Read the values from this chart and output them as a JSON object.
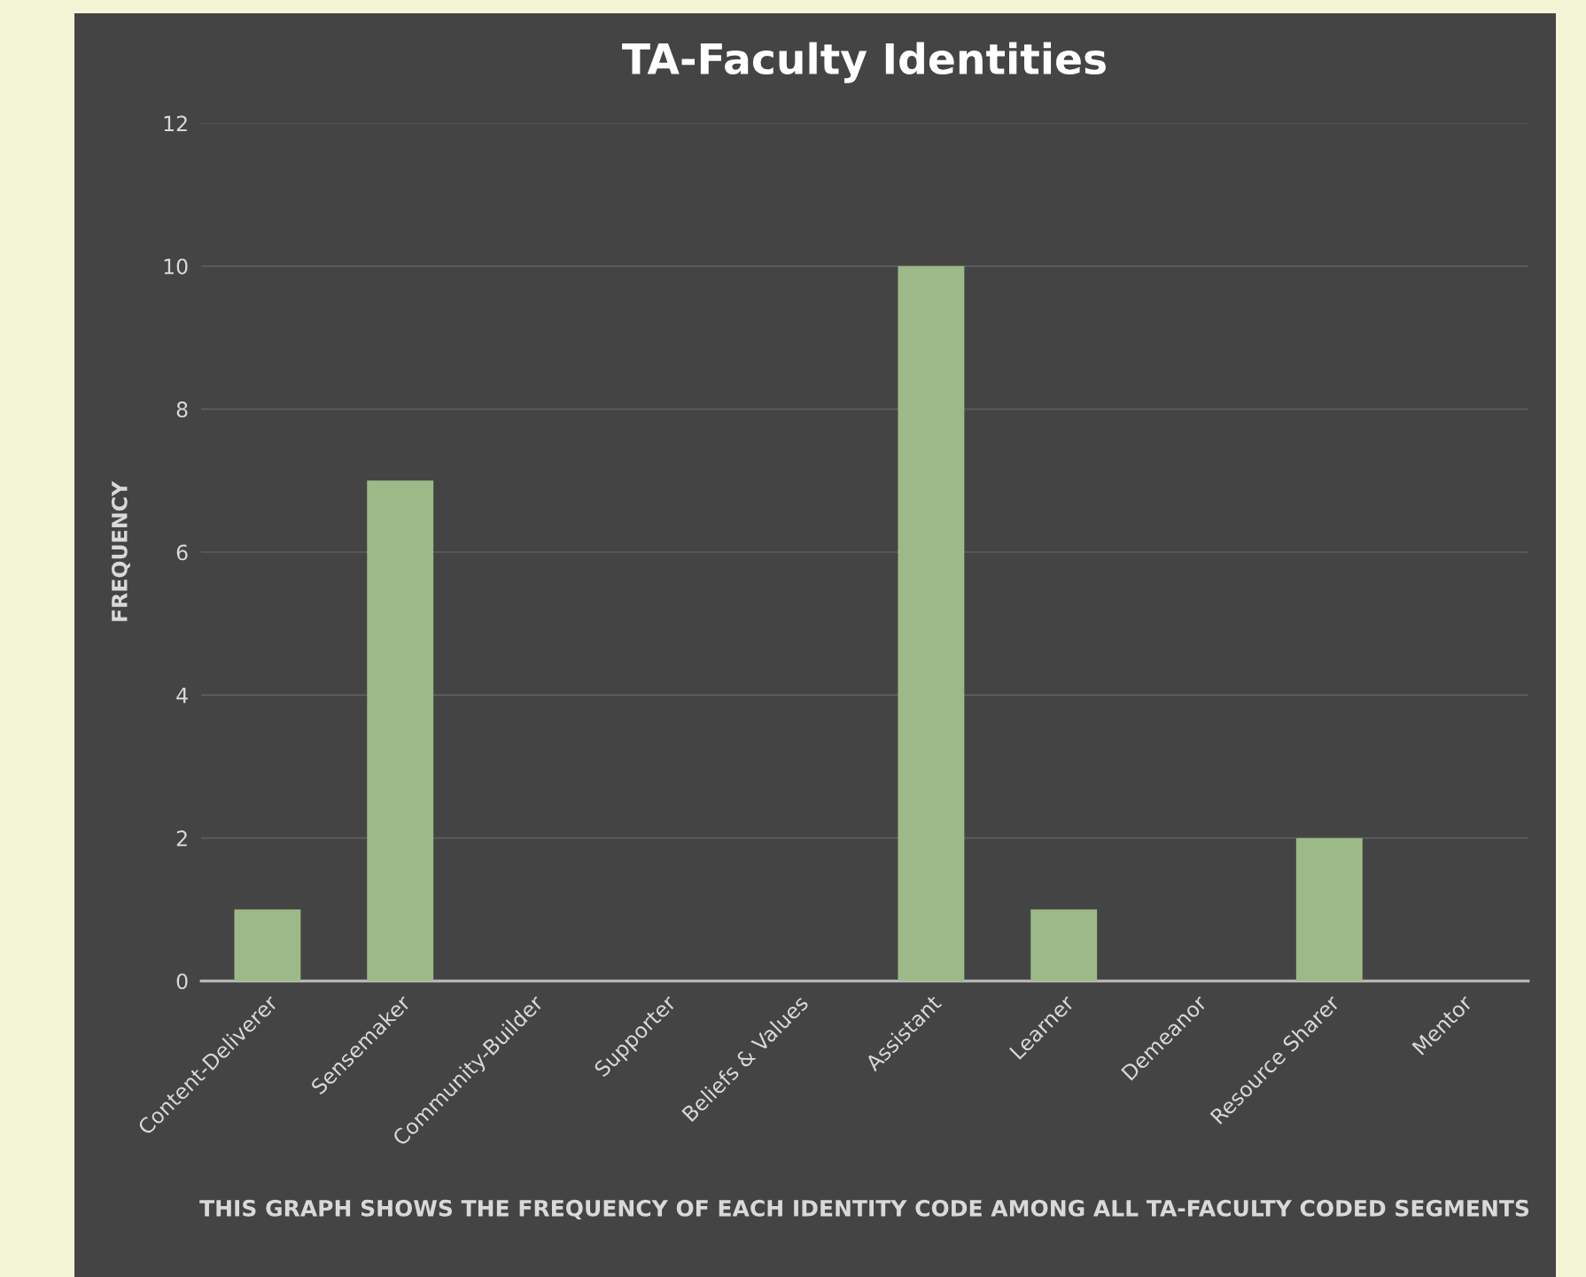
{
  "chart_data": {
    "type": "bar",
    "title": "TA-Faculty Identities",
    "xlabel": "THIS GRAPH SHOWS THE FREQUENCY OF EACH IDENTITY CODE AMONG ALL TA-FACULTY CODED SEGMENTS",
    "ylabel": "FREQUENCY",
    "categories": [
      "Content-Deliverer",
      "Sensemaker",
      "Community-Builder",
      "Supporter",
      "Beliefs & Values",
      "Assistant",
      "Learner",
      "Demeanor",
      "Resource Sharer",
      "Mentor"
    ],
    "values": [
      1,
      7,
      0,
      0,
      0,
      10,
      1,
      0,
      2,
      0
    ],
    "color": "#9db988",
    "ylim": [
      0,
      12
    ],
    "yticks": [
      0,
      2,
      4,
      6,
      8,
      10,
      12
    ],
    "grid": "y",
    "legend": false
  }
}
